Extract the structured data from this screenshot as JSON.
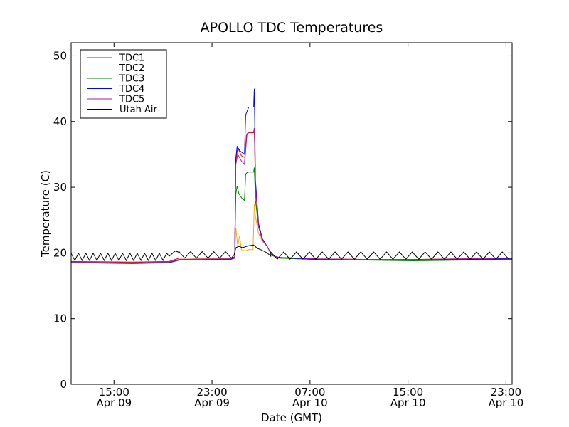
{
  "chart_data": {
    "type": "line",
    "title": "APOLLO TDC Temperatures",
    "xlabel": "Date (GMT)",
    "ylabel": "Temperature (C)",
    "xlim_hours": [
      0,
      36
    ],
    "ylim": [
      0,
      52
    ],
    "yticks": [
      0,
      10,
      20,
      30,
      40,
      50
    ],
    "xticks": [
      {
        "hour": 3.5,
        "time": "15:00",
        "date": "Apr 09"
      },
      {
        "hour": 11.5,
        "time": "23:00",
        "date": "Apr 09"
      },
      {
        "hour": 19.5,
        "time": "07:00",
        "date": "Apr 10"
      },
      {
        "hour": 27.5,
        "time": "15:00",
        "date": "Apr 10"
      },
      {
        "hour": 35.5,
        "time": "23:00",
        "date": "Apr 10"
      }
    ],
    "legend_position": "top-left",
    "series": [
      {
        "name": "TDC1",
        "color": "#ff0000",
        "points": [
          [
            0,
            18.7
          ],
          [
            5,
            18.6
          ],
          [
            8,
            18.7
          ],
          [
            8.8,
            19.2
          ],
          [
            13,
            19.2
          ],
          [
            13.35,
            19.4
          ],
          [
            13.45,
            34
          ],
          [
            13.6,
            36
          ],
          [
            13.9,
            34.8
          ],
          [
            14.2,
            34.5
          ],
          [
            14.35,
            38
          ],
          [
            14.5,
            38.3
          ],
          [
            14.9,
            38.3
          ],
          [
            14.95,
            39
          ],
          [
            15.05,
            30
          ],
          [
            15.3,
            24
          ],
          [
            15.6,
            22
          ],
          [
            16,
            21
          ],
          [
            16.4,
            19.6
          ],
          [
            17,
            19.3
          ],
          [
            20,
            19.1
          ],
          [
            24,
            19
          ],
          [
            28,
            19
          ],
          [
            32,
            19.1
          ],
          [
            36,
            19.2
          ]
        ]
      },
      {
        "name": "TDC2",
        "color": "#ffaa00",
        "points": [
          [
            0,
            18.6
          ],
          [
            5,
            18.5
          ],
          [
            8,
            18.6
          ],
          [
            8.8,
            19
          ],
          [
            13,
            19.1
          ],
          [
            13.35,
            19.2
          ],
          [
            13.45,
            23.8
          ],
          [
            13.6,
            21
          ],
          [
            13.75,
            22.6
          ],
          [
            13.9,
            20.5
          ],
          [
            14.2,
            20.3
          ],
          [
            14.5,
            20.5
          ],
          [
            14.85,
            20.5
          ],
          [
            14.95,
            27.5
          ],
          [
            15.05,
            25.5
          ],
          [
            15.3,
            23
          ],
          [
            15.6,
            21.8
          ],
          [
            16,
            21
          ],
          [
            16.4,
            19.6
          ],
          [
            17,
            19.2
          ],
          [
            20,
            19
          ],
          [
            24,
            18.9
          ],
          [
            28,
            18.9
          ],
          [
            32,
            19
          ],
          [
            36,
            19.1
          ]
        ]
      },
      {
        "name": "TDC3",
        "color": "#008000",
        "points": [
          [
            0,
            18.6
          ],
          [
            5,
            18.5
          ],
          [
            8,
            18.6
          ],
          [
            8.8,
            19
          ],
          [
            13,
            19.1
          ],
          [
            13.35,
            19.3
          ],
          [
            13.45,
            29
          ],
          [
            13.55,
            30.2
          ],
          [
            13.7,
            29
          ],
          [
            13.95,
            28.3
          ],
          [
            14.15,
            28
          ],
          [
            14.25,
            32
          ],
          [
            14.4,
            32.3
          ],
          [
            14.9,
            32.3
          ],
          [
            14.95,
            33
          ],
          [
            15.05,
            28
          ],
          [
            15.3,
            24
          ],
          [
            15.6,
            22
          ],
          [
            16,
            21
          ],
          [
            16.4,
            19.6
          ],
          [
            17,
            19.2
          ],
          [
            20,
            19
          ],
          [
            24,
            18.9
          ],
          [
            28,
            18.8
          ],
          [
            32,
            18.9
          ],
          [
            36,
            19
          ]
        ]
      },
      {
        "name": "TDC4",
        "color": "#0000ff",
        "points": [
          [
            0,
            18.5
          ],
          [
            5,
            18.4
          ],
          [
            8,
            18.5
          ],
          [
            8.8,
            18.9
          ],
          [
            13,
            19
          ],
          [
            13.35,
            19.2
          ],
          [
            13.45,
            34.5
          ],
          [
            13.55,
            36.2
          ],
          [
            13.8,
            35.5
          ],
          [
            14.15,
            35
          ],
          [
            14.25,
            41
          ],
          [
            14.5,
            42.2
          ],
          [
            14.9,
            42.2
          ],
          [
            14.95,
            45
          ],
          [
            15.05,
            31
          ],
          [
            15.3,
            24.5
          ],
          [
            15.6,
            22.2
          ],
          [
            16,
            21
          ],
          [
            16.4,
            19.6
          ],
          [
            17,
            19.3
          ],
          [
            20,
            19
          ],
          [
            24,
            18.9
          ],
          [
            28,
            18.9
          ],
          [
            32,
            19
          ],
          [
            36,
            19.1
          ]
        ]
      },
      {
        "name": "TDC5",
        "color": "#a020a0",
        "points": [
          [
            0,
            18.6
          ],
          [
            5,
            18.5
          ],
          [
            8,
            18.6
          ],
          [
            8.8,
            19
          ],
          [
            13,
            19.1
          ],
          [
            13.35,
            19.3
          ],
          [
            13.45,
            33.5
          ],
          [
            13.6,
            35
          ],
          [
            13.9,
            34
          ],
          [
            14.15,
            33.5
          ],
          [
            14.3,
            38
          ],
          [
            14.5,
            38.4
          ],
          [
            14.9,
            38.4
          ],
          [
            14.95,
            39
          ],
          [
            15.05,
            30
          ],
          [
            15.3,
            24
          ],
          [
            15.6,
            22
          ],
          [
            16,
            21
          ],
          [
            16.4,
            19.6
          ],
          [
            17,
            19.3
          ],
          [
            20,
            19.1
          ],
          [
            24,
            19
          ],
          [
            28,
            19
          ],
          [
            32,
            19.1
          ],
          [
            36,
            19.2
          ]
        ]
      },
      {
        "name": "Utah Air",
        "color": "#000000",
        "oscillation": {
          "segments": [
            {
              "start": 0,
              "end": 8,
              "base": 19.4,
              "amp": 0.55,
              "period": 0.6
            },
            {
              "start": 8.8,
              "end": 13.3,
              "base": 19.7,
              "amp": 0.5,
              "period": 0.95
            },
            {
              "start": 16.3,
              "end": 36,
              "base": 19.6,
              "amp": 0.55,
              "period": 1.05
            }
          ]
        },
        "points": [
          [
            8,
            19.5
          ],
          [
            8.5,
            20.3
          ],
          [
            8.8,
            20.1
          ],
          [
            13.3,
            19.7
          ],
          [
            13.45,
            20.8
          ],
          [
            13.7,
            21
          ],
          [
            14,
            20.8
          ],
          [
            14.5,
            21.1
          ],
          [
            14.9,
            21.2
          ],
          [
            15.2,
            20.7
          ],
          [
            15.6,
            20.4
          ],
          [
            16,
            20
          ],
          [
            16.3,
            19.5
          ]
        ]
      }
    ]
  }
}
